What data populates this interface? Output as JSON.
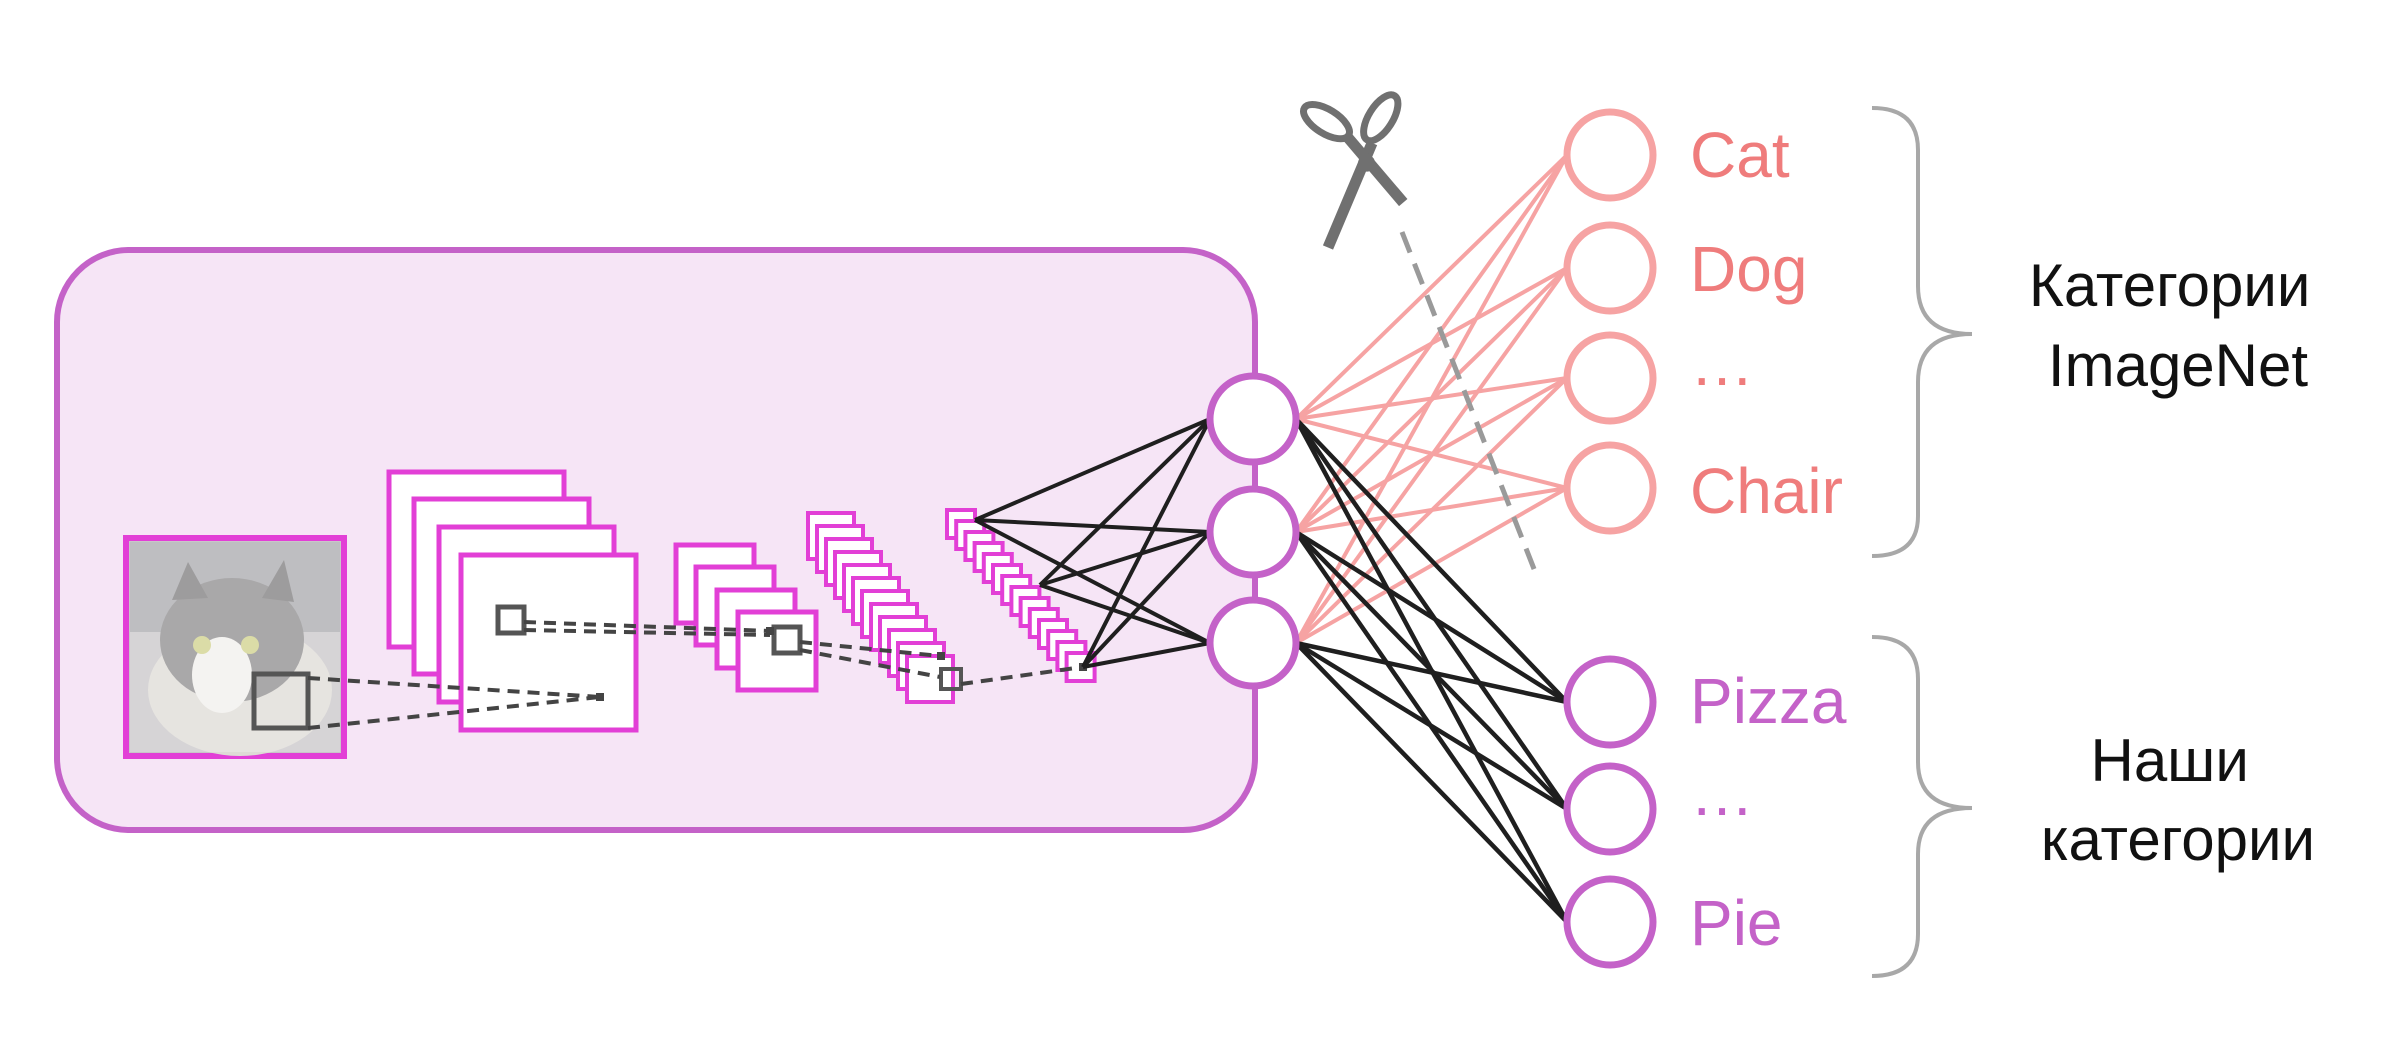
{
  "colors": {
    "panel_fill": "#f6e5f6",
    "panel_stroke": "#c462c8",
    "feature_map": "#e23fd6",
    "hidden_node": "#c462c8",
    "old_output": "#f6a3a3",
    "old_text": "#ef7c7c",
    "new_output": "#c462c8",
    "kept_edge": "#1f1f1f",
    "cut_line": "#9a9a9a",
    "brace": "#a8a8a8"
  },
  "old_classes": {
    "items": [
      "Cat",
      "Dog",
      "…",
      "Chair"
    ],
    "group_label": [
      "Категории",
      "ImageNet"
    ]
  },
  "new_classes": {
    "items": [
      "Pizza",
      "…",
      "Pie"
    ],
    "group_label": [
      "Наши",
      "категории"
    ]
  },
  "icons": {
    "input": "cat-photo",
    "cut": "scissors-icon"
  }
}
